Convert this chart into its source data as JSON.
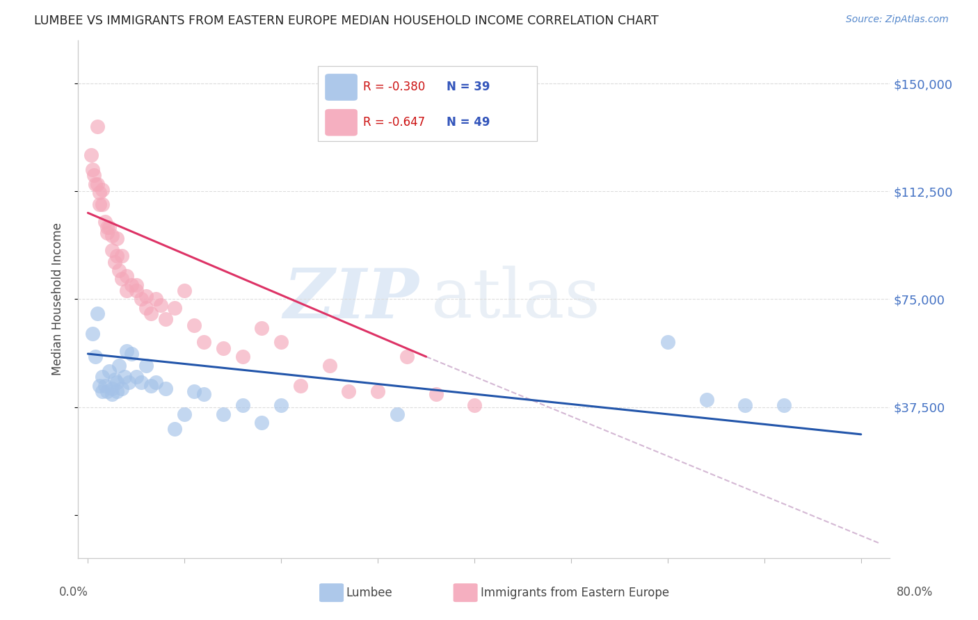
{
  "title": "LUMBEE VS IMMIGRANTS FROM EASTERN EUROPE MEDIAN HOUSEHOLD INCOME CORRELATION CHART",
  "source": "Source: ZipAtlas.com",
  "ylabel": "Median Household Income",
  "ytick_values": [
    0,
    37500,
    75000,
    112500,
    150000
  ],
  "ytick_labels": [
    "",
    "$37,500",
    "$75,000",
    "$112,500",
    "$150,000"
  ],
  "ymax": 165000,
  "ymin": -15000,
  "xmin": -1.0,
  "xmax": 83.0,
  "legend_r1": "R = -0.380",
  "legend_n1": "N = 39",
  "legend_r2": "R = -0.647",
  "legend_n2": "N = 49",
  "legend_label1": "Lumbee",
  "legend_label2": "Immigrants from Eastern Europe",
  "blue_color": "#a4c2e8",
  "pink_color": "#f4a7b9",
  "blue_line_color": "#2255aa",
  "pink_line_color": "#dd3366",
  "dashed_line_color": "#d4b8d4",
  "background_color": "#ffffff",
  "blue_x": [
    0.5,
    0.8,
    1.0,
    1.2,
    1.5,
    1.5,
    1.8,
    2.0,
    2.2,
    2.5,
    2.5,
    2.8,
    3.0,
    3.0,
    3.2,
    3.5,
    3.8,
    4.0,
    4.2,
    4.5,
    5.0,
    5.5,
    6.0,
    6.5,
    7.0,
    8.0,
    9.0,
    10.0,
    11.0,
    12.0,
    14.0,
    16.0,
    18.0,
    20.0,
    32.0,
    60.0,
    64.0,
    68.0,
    72.0
  ],
  "blue_y": [
    63000,
    55000,
    70000,
    45000,
    48000,
    43000,
    45000,
    43000,
    50000,
    44000,
    42000,
    47000,
    46000,
    43000,
    52000,
    44000,
    48000,
    57000,
    46000,
    56000,
    48000,
    46000,
    52000,
    45000,
    46000,
    44000,
    30000,
    35000,
    43000,
    42000,
    35000,
    38000,
    32000,
    38000,
    35000,
    60000,
    40000,
    38000,
    38000
  ],
  "pink_x": [
    0.3,
    0.5,
    0.6,
    0.8,
    1.0,
    1.0,
    1.2,
    1.2,
    1.5,
    1.5,
    1.8,
    2.0,
    2.0,
    2.2,
    2.5,
    2.5,
    2.8,
    3.0,
    3.0,
    3.2,
    3.5,
    3.5,
    4.0,
    4.0,
    4.5,
    5.0,
    5.0,
    5.5,
    6.0,
    6.0,
    6.5,
    7.0,
    7.5,
    8.0,
    9.0,
    10.0,
    11.0,
    12.0,
    14.0,
    16.0,
    18.0,
    20.0,
    22.0,
    25.0,
    27.0,
    30.0,
    33.0,
    36.0,
    40.0
  ],
  "pink_y": [
    125000,
    120000,
    118000,
    115000,
    135000,
    115000,
    108000,
    112000,
    113000,
    108000,
    102000,
    100000,
    98000,
    100000,
    97000,
    92000,
    88000,
    96000,
    90000,
    85000,
    90000,
    82000,
    83000,
    78000,
    80000,
    80000,
    78000,
    75000,
    76000,
    72000,
    70000,
    75000,
    73000,
    68000,
    72000,
    78000,
    66000,
    60000,
    58000,
    55000,
    65000,
    60000,
    45000,
    52000,
    43000,
    43000,
    55000,
    42000,
    38000
  ],
  "blue_line_x": [
    0.0,
    80.0
  ],
  "blue_line_y": [
    56000,
    28000
  ],
  "pink_line_x": [
    0.0,
    35.0
  ],
  "pink_line_y": [
    105000,
    55000
  ],
  "dashed_line_x": [
    35.0,
    82.0
  ],
  "dashed_line_y": [
    55000,
    -10000
  ],
  "xtick_positions": [
    0,
    10,
    20,
    30,
    40,
    50,
    60,
    70,
    80
  ],
  "grid_yticks": [
    37500,
    75000,
    112500,
    150000
  ]
}
